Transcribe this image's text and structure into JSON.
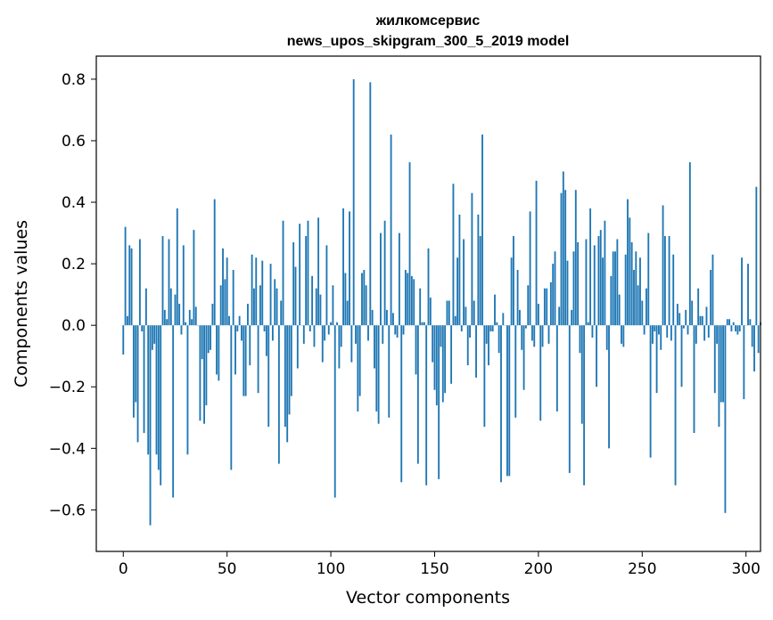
{
  "chart_data": {
    "type": "bar",
    "title": "жилкомсервис",
    "subtitle": "news_upos_skipgram_300_5_2019 model",
    "xlabel": "Vector components",
    "ylabel": "Components values",
    "xlim": [
      -13,
      307
    ],
    "ylim": [
      -0.735,
      0.875
    ],
    "xticks": [
      0,
      50,
      100,
      150,
      200,
      250,
      300
    ],
    "yticks": [
      -0.6,
      -0.4,
      -0.2,
      0.0,
      0.2,
      0.4,
      0.6,
      0.8
    ],
    "xtick_labels": [
      "0",
      "50",
      "100",
      "150",
      "200",
      "250",
      "300"
    ],
    "ytick_labels": [
      "−0.6",
      "−0.4",
      "−0.2",
      "0.0",
      "0.2",
      "0.4",
      "0.6",
      "0.8"
    ],
    "bar_color": "#1f77b4",
    "grid": false,
    "legend": "none",
    "x_start": 0,
    "values": [
      -0.095,
      0.32,
      0.03,
      0.26,
      0.25,
      -0.3,
      -0.25,
      -0.38,
      0.28,
      -0.02,
      -0.35,
      0.12,
      -0.42,
      -0.65,
      -0.08,
      -0.06,
      -0.42,
      -0.47,
      -0.52,
      0.29,
      0.05,
      0.02,
      0.28,
      0.12,
      -0.56,
      0.1,
      0.38,
      0.07,
      -0.03,
      0.26,
      0.01,
      -0.42,
      0.05,
      0.02,
      0.31,
      0.06,
      0.0,
      -0.31,
      -0.11,
      -0.32,
      -0.26,
      -0.09,
      -0.08,
      0.07,
      0.41,
      -0.16,
      -0.18,
      0.13,
      0.25,
      0.15,
      0.22,
      0.03,
      -0.47,
      0.18,
      -0.16,
      -0.02,
      0.03,
      -0.05,
      -0.23,
      -0.23,
      0.07,
      -0.13,
      0.23,
      0.12,
      0.22,
      -0.22,
      0.13,
      0.21,
      -0.02,
      -0.1,
      -0.33,
      0.2,
      -0.05,
      0.15,
      0.12,
      -0.45,
      0.08,
      0.34,
      -0.33,
      -0.38,
      -0.29,
      -0.23,
      0.27,
      0.19,
      -0.14,
      0.33,
      0.0,
      -0.06,
      0.29,
      0.34,
      -0.02,
      0.16,
      -0.07,
      0.12,
      0.35,
      0.1,
      -0.12,
      -0.05,
      0.26,
      -0.03,
      0.01,
      0.13,
      -0.56,
      0.01,
      -0.14,
      -0.07,
      0.38,
      0.17,
      0.08,
      0.37,
      -0.12,
      0.8,
      -0.06,
      -0.28,
      -0.23,
      0.17,
      0.18,
      0.13,
      -0.05,
      0.79,
      0.05,
      -0.14,
      -0.28,
      -0.32,
      0.3,
      -0.06,
      0.34,
      0.05,
      -0.3,
      0.62,
      0.04,
      -0.03,
      -0.04,
      0.3,
      -0.51,
      -0.03,
      0.18,
      0.17,
      0.53,
      0.16,
      0.15,
      -0.16,
      -0.45,
      0.12,
      0.01,
      0.01,
      -0.52,
      0.25,
      0.09,
      -0.12,
      -0.21,
      -0.26,
      -0.5,
      -0.07,
      -0.25,
      -0.22,
      0.08,
      0.08,
      -0.19,
      0.46,
      0.03,
      0.22,
      0.36,
      -0.02,
      0.28,
      0.06,
      -0.13,
      -0.04,
      0.43,
      0.08,
      -0.17,
      0.36,
      0.29,
      0.62,
      -0.33,
      -0.06,
      -0.13,
      -0.02,
      -0.02,
      0.1,
      0.01,
      -0.09,
      -0.51,
      0.04,
      0.0,
      -0.49,
      -0.49,
      0.22,
      0.29,
      -0.3,
      0.18,
      0.05,
      -0.08,
      -0.21,
      -0.01,
      0.13,
      0.37,
      -0.05,
      -0.07,
      0.47,
      0.07,
      -0.31,
      -0.07,
      0.12,
      0.12,
      -0.06,
      0.14,
      0.2,
      0.24,
      -0.28,
      0.06,
      0.43,
      0.5,
      0.44,
      0.21,
      -0.48,
      0.05,
      0.24,
      0.44,
      0.27,
      -0.09,
      -0.32,
      -0.52,
      0.28,
      0.01,
      0.38,
      -0.04,
      0.26,
      -0.2,
      0.29,
      0.31,
      0.22,
      0.34,
      -0.08,
      -0.4,
      0.16,
      0.24,
      0.24,
      0.28,
      0.1,
      -0.06,
      -0.07,
      0.23,
      0.41,
      0.35,
      0.27,
      0.18,
      0.24,
      0.13,
      0.22,
      0.08,
      -0.03,
      0.12,
      0.3,
      -0.43,
      -0.06,
      -0.02,
      -0.22,
      -0.03,
      -0.08,
      0.39,
      0.29,
      -0.04,
      0.29,
      -0.05,
      0.23,
      -0.52,
      0.07,
      0.04,
      -0.2,
      -0.01,
      0.05,
      -0.03,
      0.53,
      0.08,
      -0.35,
      -0.06,
      0.12,
      0.03,
      0.03,
      -0.05,
      0.06,
      -0.04,
      0.18,
      0.23,
      -0.22,
      -0.06,
      -0.33,
      -0.25,
      -0.25,
      -0.61,
      0.02,
      0.02,
      -0.02,
      0.01,
      -0.02,
      -0.03,
      -0.02,
      0.22,
      -0.24,
      0.0,
      0.2,
      0.02,
      -0.07,
      -0.15,
      0.45,
      -0.09,
      0.01
    ]
  }
}
